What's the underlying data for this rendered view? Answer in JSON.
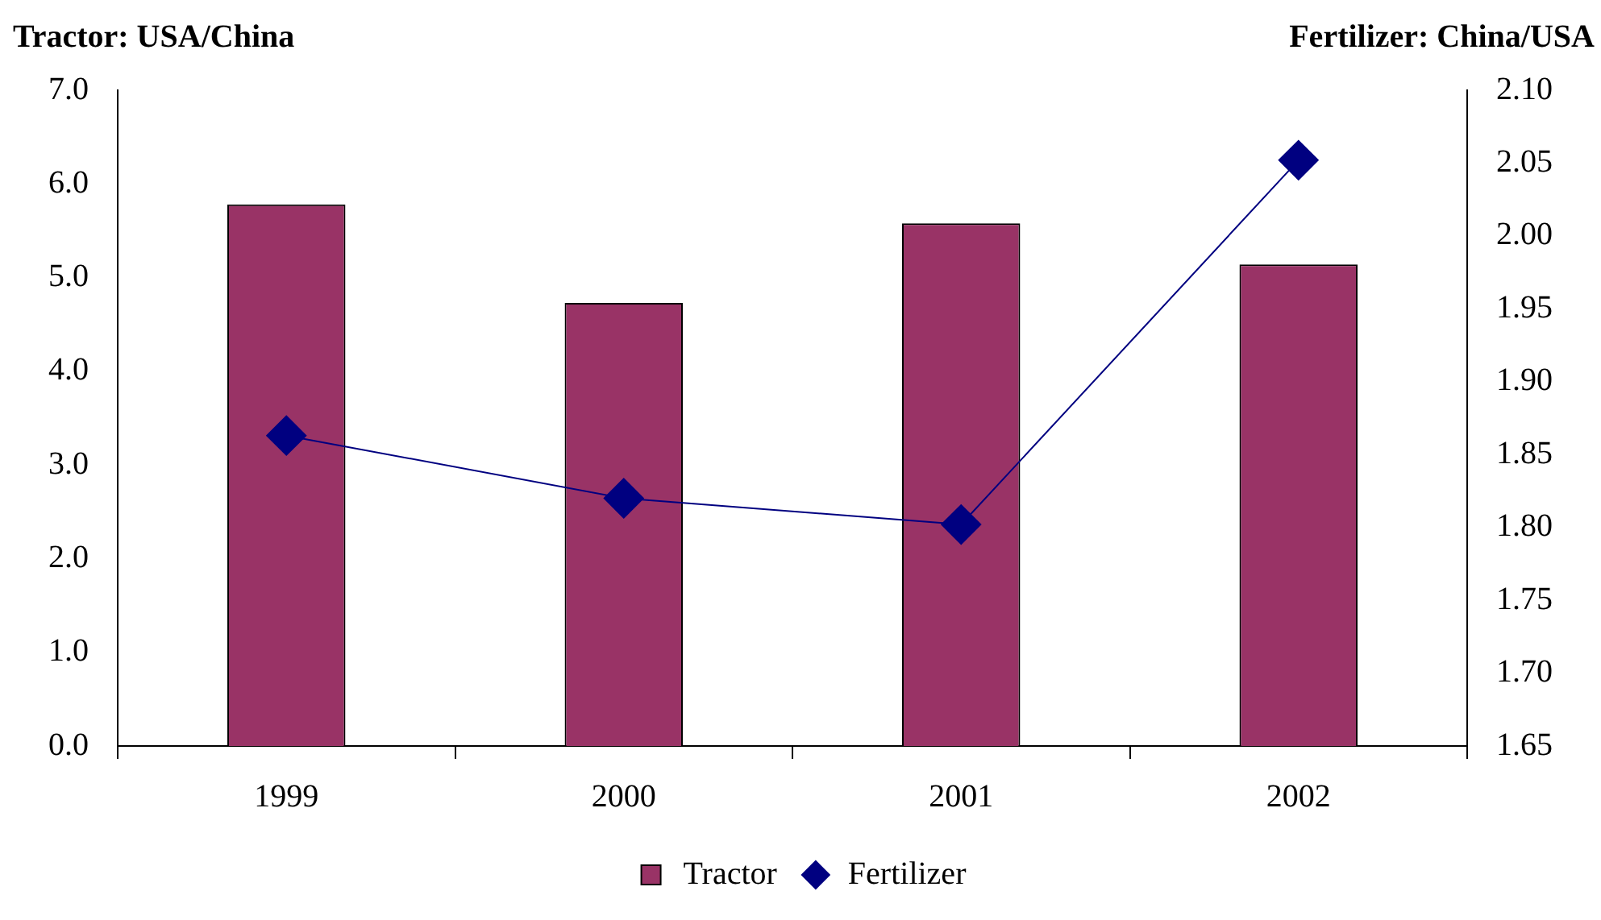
{
  "chart_data": {
    "type": "bar",
    "ylabel": "Tractor: USA/China",
    "y2label": "Fertilizer: China/USA",
    "categories": [
      "1999",
      "2000",
      "2001",
      "2002"
    ],
    "series": [
      {
        "name": "Tractor",
        "color": "#993366",
        "values": [
          5.78,
          4.73,
          5.58,
          5.14
        ]
      },
      {
        "name": "Fertilizer",
        "type": "line",
        "axis": "y2",
        "color": "#000080",
        "marker": "diamond",
        "line_style": "solid",
        "values": [
          1.863,
          1.82,
          1.802,
          2.052
        ]
      }
    ],
    "ylim": [
      0,
      7
    ],
    "yticks": [
      {
        "value": 0,
        "label": "0.0"
      },
      {
        "value": 1,
        "label": "1.0"
      },
      {
        "value": 2,
        "label": "2.0"
      },
      {
        "value": 3,
        "label": "3.0"
      },
      {
        "value": 4,
        "label": "4.0"
      },
      {
        "value": 5,
        "label": "5.0"
      },
      {
        "value": 6,
        "label": "6.0"
      },
      {
        "value": 7,
        "label": "7.0"
      }
    ],
    "y2lim": [
      1.65,
      2.1
    ],
    "y2ticks": [
      1.65,
      {
        "value": 1.7,
        "label": "1.70"
      },
      1.75,
      {
        "value": 1.8,
        "label": "1.80"
      },
      1.85,
      {
        "value": 1.9,
        "label": "1.90"
      },
      1.95,
      {
        "value": 2,
        "label": "2.00"
      },
      2.05,
      {
        "value": 2.1,
        "label": "2.10"
      }
    ],
    "grid": false,
    "legend": "bottom"
  }
}
